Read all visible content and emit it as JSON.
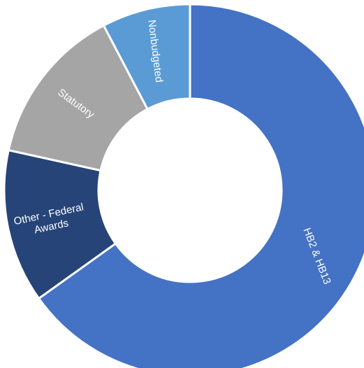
{
  "chart_data": {
    "type": "pie",
    "style": "donut",
    "title": "",
    "slices": [
      {
        "label": "HB2 & HB13",
        "value": 63.5,
        "color": "#4472c4"
      },
      {
        "label": "Other - Federal Awards",
        "value": 13.0,
        "color": "#264478"
      },
      {
        "label": "Statutory",
        "value": 13.5,
        "color": "#a5a5a5"
      },
      {
        "label": "Nonbudgeted",
        "value": 7.5,
        "color": "#5b9bd5"
      }
    ],
    "slice_border_color": "#ffffff",
    "label_color": "#ffffff",
    "legend": "none"
  }
}
